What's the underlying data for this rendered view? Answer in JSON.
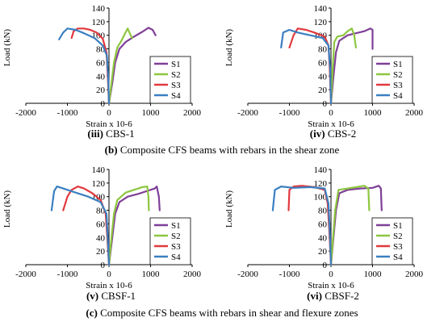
{
  "captions": {
    "b": {
      "label": "(b)",
      "text": " Composite CFS beams with rebars in the shear zone"
    },
    "c": {
      "label": "(c)",
      "text": " Composite CFS beams with rebars in shear and flexure zones"
    }
  },
  "colors": {
    "S1": "#7f3f98",
    "S2": "#8dc63f",
    "S3": "#e03a3e",
    "S4": "#3a7fc1"
  },
  "chart_data": [
    {
      "id": "cbs1",
      "type": "line",
      "title": "",
      "panel_label": "(iii)",
      "panel_name": " CBS-1",
      "xlabel": "Strain x 10-6",
      "ylabel": "Load (kN)",
      "xlim": [
        -2000,
        2000
      ],
      "ylim": [
        0,
        140
      ],
      "xticks": [
        -2000,
        -1000,
        0,
        1000,
        2000
      ],
      "yticks": [
        0,
        20,
        40,
        60,
        80,
        100,
        120,
        140
      ],
      "legend": [
        "S1",
        "S2",
        "S3",
        "S4"
      ],
      "series": [
        {
          "name": "S1",
          "points": [
            [
              0,
              0
            ],
            [
              80,
              30
            ],
            [
              150,
              60
            ],
            [
              250,
              80
            ],
            [
              400,
              90
            ],
            [
              600,
              98
            ],
            [
              800,
              105
            ],
            [
              950,
              111
            ],
            [
              1050,
              108
            ],
            [
              1120,
              100
            ]
          ]
        },
        {
          "name": "S2",
          "points": [
            [
              0,
              0
            ],
            [
              60,
              30
            ],
            [
              120,
              60
            ],
            [
              200,
              82
            ],
            [
              300,
              92
            ],
            [
              380,
              102
            ],
            [
              450,
              110
            ],
            [
              520,
              100
            ],
            [
              560,
              96
            ]
          ]
        },
        {
          "name": "S3",
          "points": [
            [
              0,
              0
            ],
            [
              -30,
              40
            ],
            [
              -60,
              75
            ],
            [
              -150,
              95
            ],
            [
              -300,
              104
            ],
            [
              -450,
              108
            ],
            [
              -600,
              110
            ],
            [
              -750,
              110
            ],
            [
              -850,
              106
            ],
            [
              -900,
              96
            ]
          ]
        },
        {
          "name": "S4",
          "points": [
            [
              0,
              0
            ],
            [
              -20,
              40
            ],
            [
              -50,
              70
            ],
            [
              -150,
              85
            ],
            [
              -350,
              96
            ],
            [
              -600,
              103
            ],
            [
              -800,
              108
            ],
            [
              -1000,
              110
            ],
            [
              -1100,
              104
            ],
            [
              -1200,
              94
            ]
          ]
        }
      ]
    },
    {
      "id": "cbs2",
      "type": "line",
      "title": "",
      "panel_label": "(iv)",
      "panel_name": " CBS-2",
      "xlabel": "Strain x 10-6",
      "ylabel": "Load (kN)",
      "xlim": [
        -2000,
        2000
      ],
      "ylim": [
        0,
        140
      ],
      "xticks": [
        -2000,
        -1000,
        0,
        1000,
        2000
      ],
      "yticks": [
        0,
        20,
        40,
        60,
        80,
        100,
        120,
        140
      ],
      "legend": [
        "S1",
        "S2",
        "S3",
        "S4"
      ],
      "series": [
        {
          "name": "S1",
          "points": [
            [
              0,
              0
            ],
            [
              60,
              40
            ],
            [
              120,
              75
            ],
            [
              200,
              92
            ],
            [
              400,
              100
            ],
            [
              600,
              103
            ],
            [
              800,
              106
            ],
            [
              950,
              110
            ],
            [
              1000,
              108
            ],
            [
              1000,
              80
            ]
          ]
        },
        {
          "name": "S2",
          "points": [
            [
              0,
              0
            ],
            [
              40,
              50
            ],
            [
              80,
              90
            ],
            [
              150,
              98
            ],
            [
              300,
              100
            ],
            [
              400,
              106
            ],
            [
              500,
              110
            ],
            [
              560,
              100
            ],
            [
              600,
              82
            ]
          ]
        },
        {
          "name": "S3",
          "points": [
            [
              0,
              0
            ],
            [
              -30,
              50
            ],
            [
              -60,
              85
            ],
            [
              -150,
              98
            ],
            [
              -400,
              104
            ],
            [
              -600,
              108
            ],
            [
              -800,
              110
            ],
            [
              -900,
              100
            ],
            [
              -1000,
              82
            ]
          ]
        },
        {
          "name": "S4",
          "points": [
            [
              0,
              0
            ],
            [
              -20,
              50
            ],
            [
              -60,
              85
            ],
            [
              -200,
              96
            ],
            [
              -500,
              100
            ],
            [
              -800,
              104
            ],
            [
              -1000,
              108
            ],
            [
              -1150,
              104
            ],
            [
              -1200,
              82
            ]
          ]
        }
      ]
    },
    {
      "id": "cbsf1",
      "type": "line",
      "title": "",
      "panel_label": "(v)",
      "panel_name": " CBSF-1",
      "xlabel": "Strain x 10-6",
      "ylabel": "Load (kN)",
      "xlim": [
        -2000,
        2000
      ],
      "ylim": [
        0,
        140
      ],
      "xticks": [
        -2000,
        -1000,
        0,
        1000,
        2000
      ],
      "yticks": [
        0,
        20,
        40,
        60,
        80,
        100,
        120,
        140
      ],
      "legend": [
        "S1",
        "S2",
        "S3",
        "S4"
      ],
      "series": [
        {
          "name": "S1",
          "points": [
            [
              0,
              0
            ],
            [
              80,
              40
            ],
            [
              150,
              75
            ],
            [
              250,
              92
            ],
            [
              450,
              100
            ],
            [
              700,
              104
            ],
            [
              900,
              108
            ],
            [
              1100,
              112
            ],
            [
              1150,
              115
            ],
            [
              1200,
              100
            ],
            [
              1220,
              80
            ]
          ]
        },
        {
          "name": "S2",
          "points": [
            [
              0,
              0
            ],
            [
              60,
              40
            ],
            [
              120,
              75
            ],
            [
              200,
              95
            ],
            [
              400,
              106
            ],
            [
              600,
              110
            ],
            [
              800,
              114
            ],
            [
              920,
              115
            ],
            [
              950,
              100
            ],
            [
              960,
              80
            ]
          ]
        },
        {
          "name": "S3",
          "points": [
            [
              0,
              0
            ],
            [
              -40,
              40
            ],
            [
              -80,
              75
            ],
            [
              -200,
              95
            ],
            [
              -400,
              105
            ],
            [
              -600,
              112
            ],
            [
              -750,
              115
            ],
            [
              -900,
              110
            ],
            [
              -1000,
              100
            ],
            [
              -1100,
              80
            ]
          ]
        },
        {
          "name": "S4",
          "points": [
            [
              0,
              0
            ],
            [
              -30,
              40
            ],
            [
              -60,
              75
            ],
            [
              -200,
              92
            ],
            [
              -500,
              100
            ],
            [
              -800,
              106
            ],
            [
              -1100,
              112
            ],
            [
              -1250,
              115
            ],
            [
              -1320,
              108
            ],
            [
              -1380,
              80
            ]
          ]
        }
      ]
    },
    {
      "id": "cbsf2",
      "type": "line",
      "title": "",
      "panel_label": "(vi)",
      "panel_name": " CBSF-2",
      "xlabel": "Strain x 10-6",
      "ylabel": "Load (kN)",
      "xlim": [
        -2000,
        2000
      ],
      "ylim": [
        0,
        140
      ],
      "xticks": [
        -2000,
        -1000,
        0,
        1000,
        2000
      ],
      "yticks": [
        0,
        20,
        40,
        60,
        80,
        100,
        120,
        140
      ],
      "legend": [
        "S1",
        "S2",
        "S3",
        "S4"
      ],
      "series": [
        {
          "name": "S1",
          "points": [
            [
              0,
              0
            ],
            [
              60,
              40
            ],
            [
              120,
              80
            ],
            [
              200,
              105
            ],
            [
              400,
              110
            ],
            [
              700,
              112
            ],
            [
              1000,
              113
            ],
            [
              1150,
              116
            ],
            [
              1200,
              112
            ],
            [
              1220,
              80
            ]
          ]
        },
        {
          "name": "S2",
          "points": [
            [
              0,
              0
            ],
            [
              50,
              40
            ],
            [
              100,
              80
            ],
            [
              180,
              110
            ],
            [
              400,
              112
            ],
            [
              600,
              114
            ],
            [
              800,
              116
            ],
            [
              900,
              112
            ],
            [
              920,
              80
            ]
          ]
        },
        {
          "name": "S3",
          "points": [
            [
              0,
              0
            ],
            [
              -40,
              50
            ],
            [
              -80,
              90
            ],
            [
              -150,
              110
            ],
            [
              -400,
              114
            ],
            [
              -700,
              116
            ],
            [
              -900,
              115
            ],
            [
              -1000,
              110
            ],
            [
              -1020,
              80
            ]
          ]
        },
        {
          "name": "S4",
          "points": [
            [
              0,
              0
            ],
            [
              -30,
              50
            ],
            [
              -60,
              90
            ],
            [
              -150,
              112
            ],
            [
              -500,
              114
            ],
            [
              -900,
              113
            ],
            [
              -1200,
              115
            ],
            [
              -1350,
              110
            ],
            [
              -1400,
              80
            ]
          ]
        }
      ]
    }
  ]
}
